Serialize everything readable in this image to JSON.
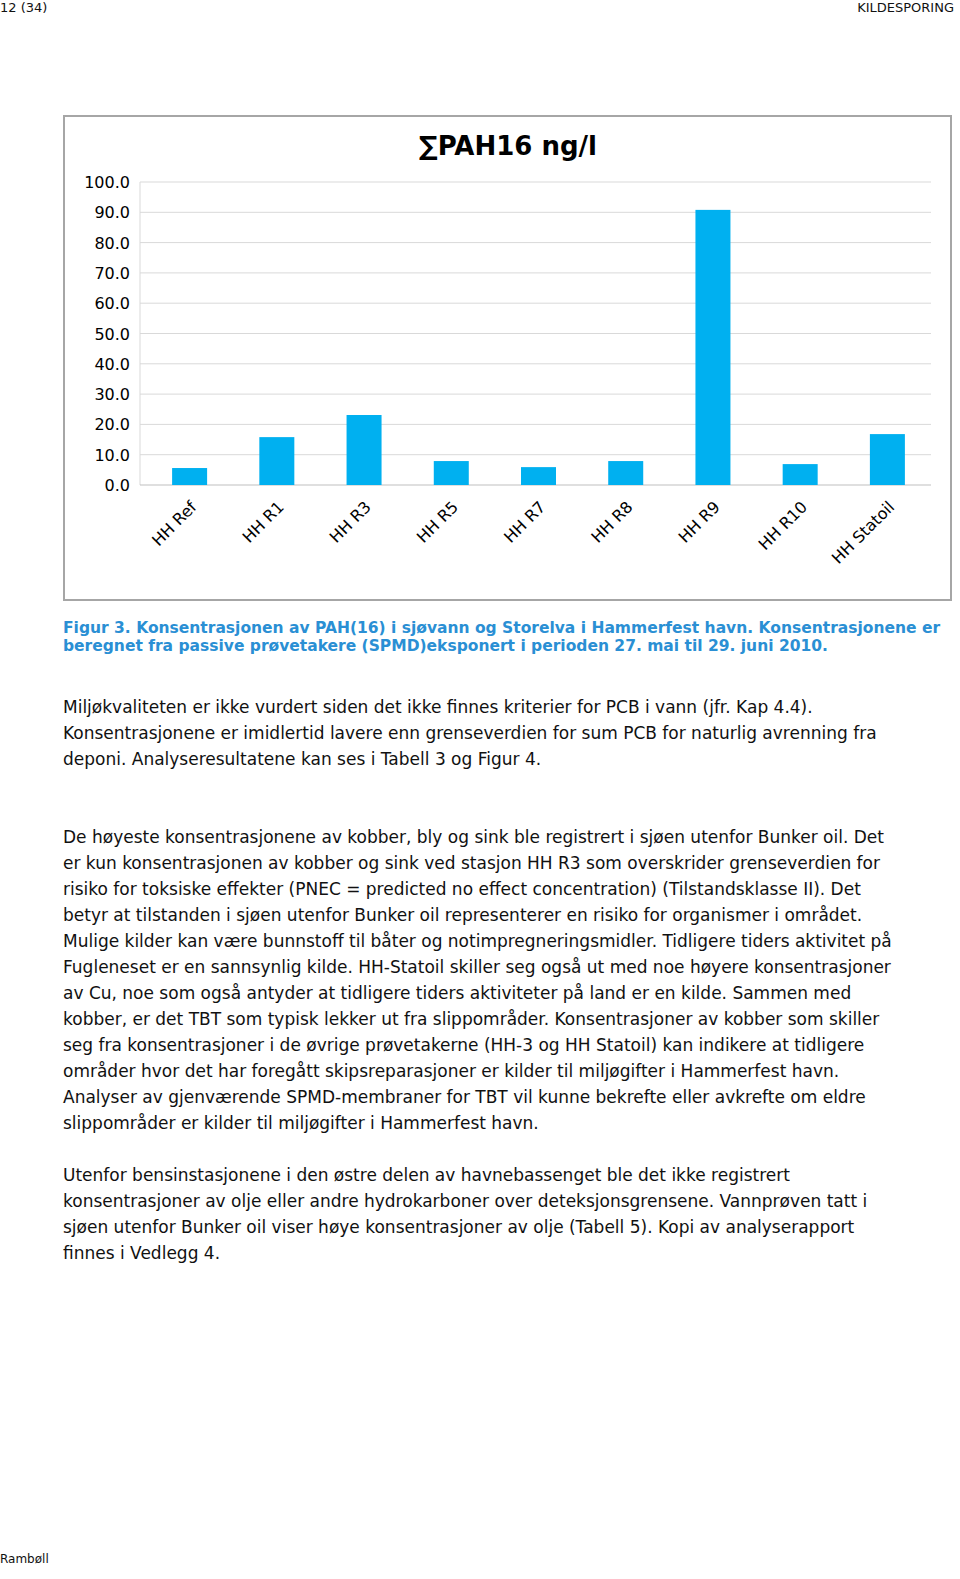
{
  "header": {
    "page": "12 (34)",
    "section": "KILDESPORING"
  },
  "chart_data": {
    "type": "bar",
    "title": "∑PAH16 ng/l",
    "categories": [
      "HH Ref",
      "HH R1",
      "HH R3",
      "HH R5",
      "HH R7",
      "HH R8",
      "HH R9",
      "HH R10",
      "HH Statoil"
    ],
    "values": [
      5.6,
      15.8,
      23.1,
      7.9,
      5.9,
      7.9,
      90.8,
      6.9,
      16.8
    ],
    "color": "#00b0f0",
    "ylim": [
      0,
      100
    ],
    "yticks": [
      {
        "value": 0,
        "label": "0.0"
      },
      {
        "value": 10,
        "label": "10.0"
      },
      {
        "value": 20,
        "label": "20.0"
      },
      {
        "value": 30,
        "label": "30.0"
      },
      {
        "value": 40,
        "label": "40.0"
      },
      {
        "value": 50,
        "label": "50.0"
      },
      {
        "value": 60,
        "label": "60.0"
      },
      {
        "value": 70,
        "label": "70.0"
      },
      {
        "value": 80,
        "label": "80.0"
      },
      {
        "value": 90,
        "label": "90.0"
      },
      {
        "value": 100,
        "label": "100.0"
      }
    ],
    "grid": true
  },
  "caption": {
    "lines": [
      "Figur 3. Konsentrasjonen av PAH(16) i sjøvann og Storelva i Hammerfest havn. Konsentrasjonene er",
      "beregnet fra passive prøvetakere (SPMD)eksponert i perioden 27. mai til 29. juni 2010."
    ]
  },
  "paragraphs": [
    {
      "lines": [
        "Miljøkvaliteten er ikke vurdert siden det ikke finnes kriterier for PCB i vann (jfr. Kap 4.4).",
        "Konsentrasjonene er imidlertid lavere enn grenseverdien for sum PCB for naturlig avrenning fra",
        "deponi. Analyseresultatene kan ses i Tabell 3 og Figur 4."
      ]
    },
    {
      "lines": [
        "De høyeste konsentrasjonene av kobber, bly og sink ble registrert i sjøen utenfor Bunker oil. Det",
        "er kun konsentrasjonen av kobber og sink ved stasjon HH R3 som overskrider grenseverdien for",
        "risiko for toksiske effekter (PNEC = predicted no effect concentration) (Tilstandsklasse II). Det",
        "betyr at tilstanden i sjøen utenfor Bunker oil representerer en risiko for organismer i området.",
        "Mulige kilder kan være bunnstoff til båter og notimpregneringsmidler. Tidligere tiders aktivitet på",
        "Fugleneset er en sannsynlig kilde. HH-Statoil skiller seg også ut med noe høyere konsentrasjoner",
        "av Cu, noe som også antyder at tidligere tiders aktiviteter på land er en kilde. Sammen med",
        "kobber, er det TBT som typisk lekker ut fra slippområder. Konsentrasjoner av kobber som skiller",
        "seg fra konsentrasjoner i de øvrige prøvetakerne (HH-3 og HH Statoil) kan indikere at tidligere",
        "områder hvor det har foregått skipsreparasjoner er kilder til miljøgifter i Hammerfest havn.",
        "Analyser av gjenværende SPMD-membraner for TBT vil kunne bekrefte eller avkrefte om eldre",
        "slippområder er kilder til miljøgifter i Hammerfest havn."
      ]
    },
    {
      "lines": [
        "Utenfor bensinstasjonene i den østre delen av havnebassenget ble det ikke registrert",
        "konsentrasjoner av olje eller andre hydrokarboner over deteksjonsgrensene. Vannprøven tatt i",
        "sjøen utenfor Bunker oil viser høye konsentrasjoner av olje (Tabell 5). Kopi av analyserapport",
        "finnes i Vedlegg 4."
      ]
    }
  ],
  "footer": "Rambøll"
}
